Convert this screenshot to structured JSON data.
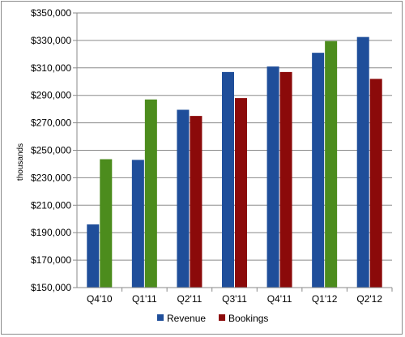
{
  "chart_data": {
    "type": "bar",
    "title": "",
    "xlabel": "",
    "ylabel": "thousands",
    "categories": [
      "Q4'10",
      "Q1'11",
      "Q2'11",
      "Q3'11",
      "Q4'11",
      "Q1'12",
      "Q2'12"
    ],
    "ylim": [
      150000,
      350000
    ],
    "yticks": [
      "$150,000",
      "$170,000",
      "$190,000",
      "$210,000",
      "$230,000",
      "$250,000",
      "$270,000",
      "$290,000",
      "$310,000",
      "$330,000",
      "$350,000"
    ],
    "grid": "horizontal",
    "legend_position": "bottom",
    "series": [
      {
        "name": "Revenue",
        "color": "#1f4e9a",
        "values": [
          196000,
          243000,
          279500,
          307000,
          311000,
          321000,
          332500
        ]
      },
      {
        "name": "Bookings",
        "color": "#8b0a0a",
        "values": [
          null,
          null,
          275000,
          288000,
          307000,
          null,
          302000
        ]
      },
      {
        "name": "",
        "color": "#4c8c1d",
        "values": [
          243500,
          287000,
          null,
          null,
          null,
          329500,
          null
        ]
      }
    ]
  }
}
